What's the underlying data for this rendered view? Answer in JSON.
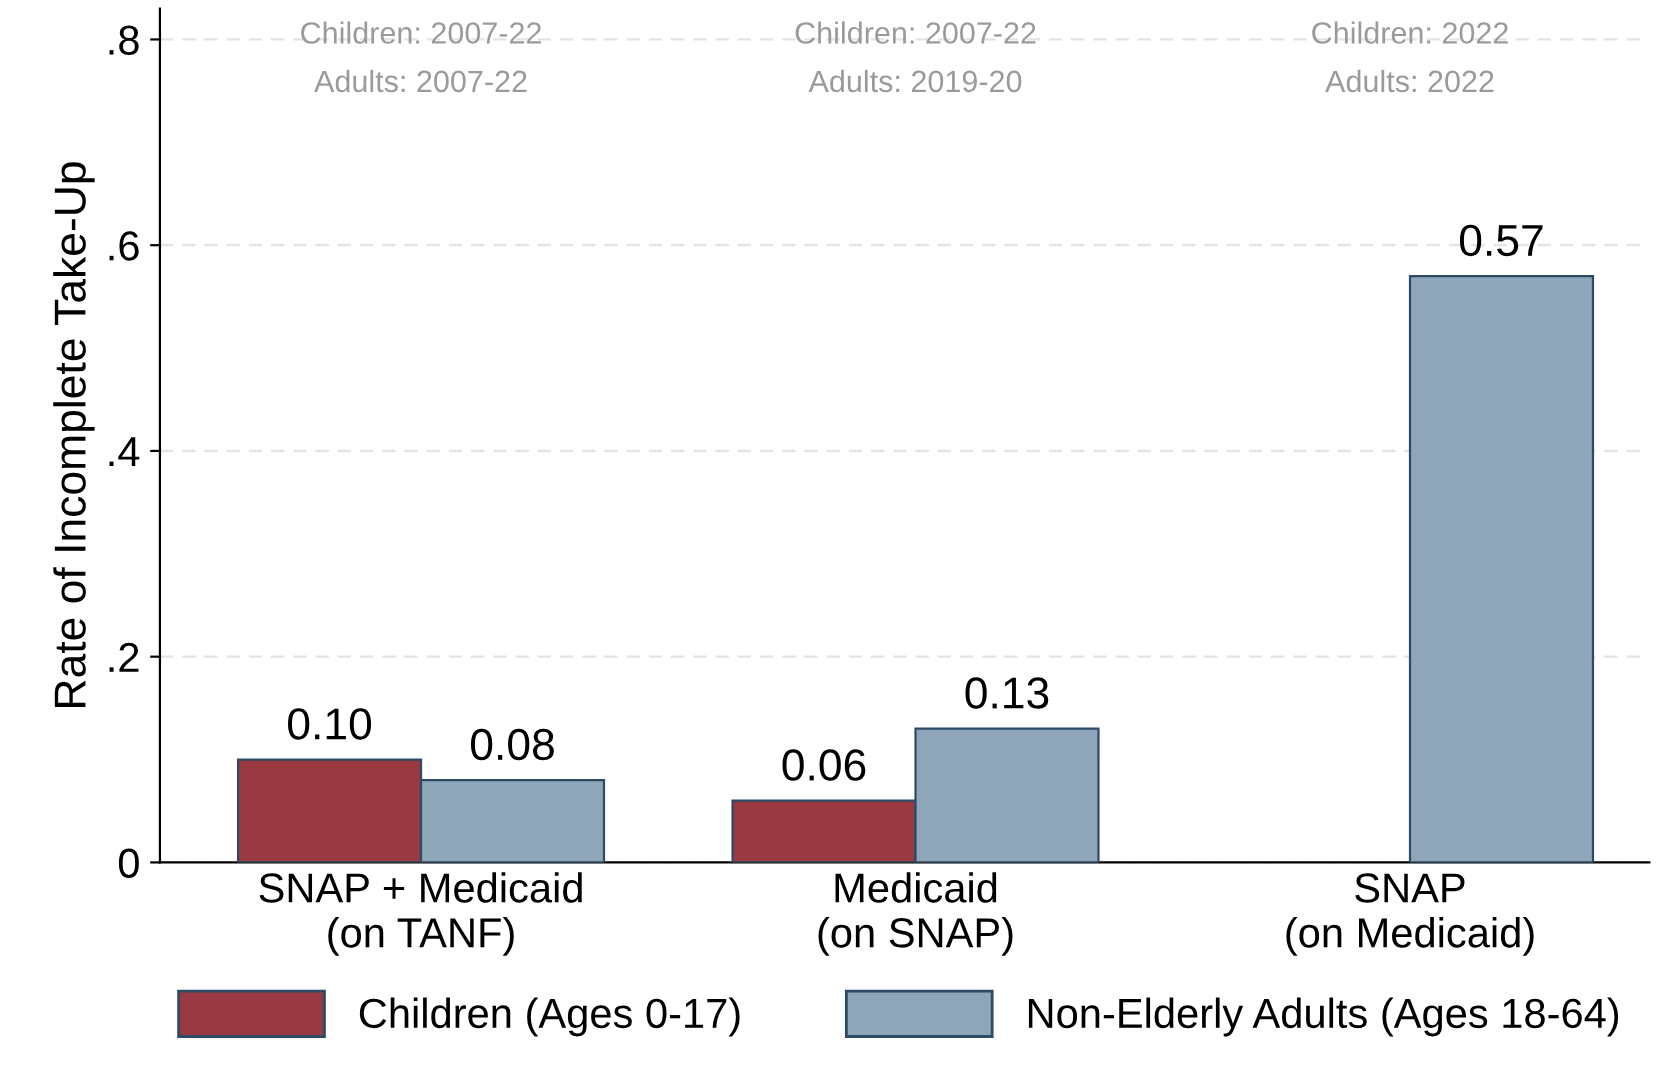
{
  "chart_data": {
    "type": "bar",
    "ylabel": "Rate of Incomplete Take-Up",
    "categories": [
      "SNAP + Medicaid\n(on TANF)",
      "Medicaid\n(on SNAP)",
      "SNAP\n(on Medicaid)"
    ],
    "series": [
      {
        "name": "Children (Ages 0-17)",
        "color": "#993a42",
        "values": [
          0.1,
          0.06,
          null
        ],
        "value_labels": [
          "0.10",
          "0.06",
          null
        ]
      },
      {
        "name": "Non-Elderly Adults (Ages 18-64)",
        "color": "#8fa5ba",
        "values": [
          0.08,
          0.13,
          0.57
        ],
        "value_labels": [
          "0.08",
          "0.13",
          "0.57"
        ]
      }
    ],
    "ylim": [
      0,
      0.83
    ],
    "yticks": [
      0,
      {
        "value": 0.2,
        "label": ".2"
      },
      {
        "value": 0.4,
        "label": ".4"
      },
      {
        "value": 0.6,
        "label": ".6"
      },
      {
        "value": 0.8,
        "label": ".8"
      }
    ],
    "grid": "y",
    "legend": "bottom",
    "annotations": [
      "Children: 2007-22\nAdults: 2007-22",
      "Children: 2007-22\nAdults: 2019-20",
      "Children: 2022\nAdults: 2022"
    ]
  }
}
